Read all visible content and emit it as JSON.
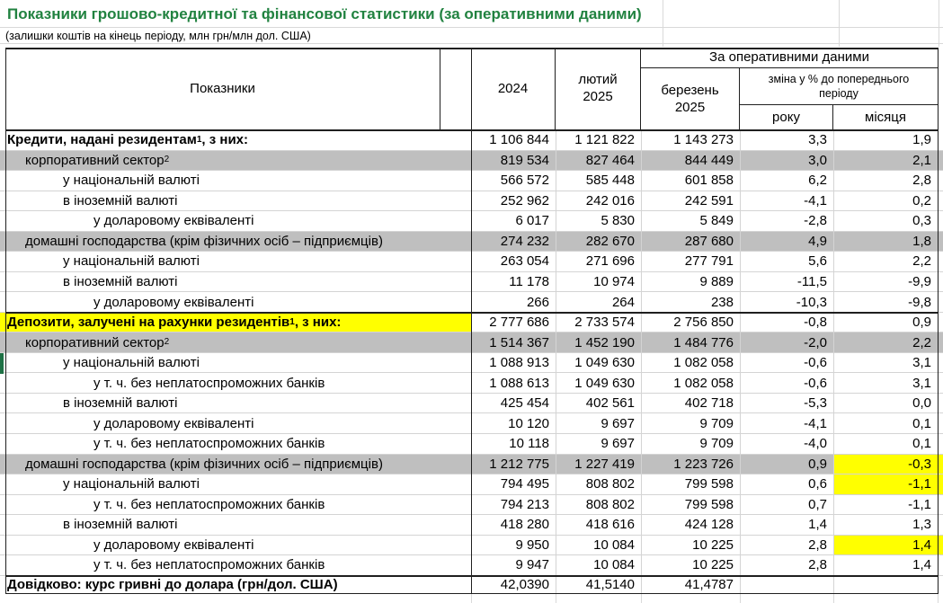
{
  "title": "Показники грошово-кредитної та фінансової статистики (за оперативними даними)",
  "subtitle": "(залишки коштів на кінець періоду, млн грн/млн дол. США)",
  "colors": {
    "title_green": "#218240",
    "selection_green": "#1e7145",
    "row_gray": "#bfbfbf",
    "highlight_yellow": "#ffff00"
  },
  "table": {
    "header": {
      "indicator": "Показники",
      "col_2024": "2024",
      "col_feb": "лютий\n2025",
      "operational": "За оперативними даними",
      "col_mar": "березень\n2025",
      "change_label": "зміна у % до попереднього періоду",
      "col_year": "року",
      "col_month": "місяця"
    },
    "rows": [
      {
        "label": "Кредити, надані резидентам",
        "sup": "1",
        "label_suffix": ", з них:",
        "indent": 0,
        "bold": true,
        "values": [
          "1 106 844",
          "1 121 822",
          "1 143 273",
          "3,3",
          "1,9"
        ]
      },
      {
        "label": "корпоративний сектор",
        "sup": "2",
        "indent": 1,
        "row_bg": "gray",
        "values": [
          "819 534",
          "827 464",
          "844 449",
          "3,0",
          "2,1"
        ]
      },
      {
        "label": "у національній валюті",
        "indent": 2,
        "values": [
          "566 572",
          "585 448",
          "601 858",
          "6,2",
          "2,8"
        ]
      },
      {
        "label": "в іноземній валюті",
        "indent": 2,
        "values": [
          "252 962",
          "242 016",
          "242 591",
          "-4,1",
          "0,2"
        ]
      },
      {
        "label": "у доларовому еквіваленті",
        "indent": 3,
        "values": [
          "6 017",
          "5 830",
          "5 849",
          "-2,8",
          "0,3"
        ]
      },
      {
        "label": "домашні господарства (крім фізичних осіб – підприємців)",
        "indent": 1,
        "row_bg": "gray",
        "values": [
          "274 232",
          "282 670",
          "287 680",
          "4,9",
          "1,8"
        ]
      },
      {
        "label": "у національній валюті",
        "indent": 2,
        "values": [
          "263 054",
          "271 696",
          "277 791",
          "5,6",
          "2,2"
        ]
      },
      {
        "label": "в іноземній валюті",
        "indent": 2,
        "values": [
          "11 178",
          "10 974",
          "9 889",
          "-11,5",
          "-9,9"
        ]
      },
      {
        "label": "у доларовому еквіваленті",
        "indent": 3,
        "values": [
          "266",
          "264",
          "238",
          "-10,3",
          "-9,8"
        ]
      },
      {
        "label": "Депозити, залучені на рахунки резидентів",
        "sup": "1",
        "label_suffix": ", з них:",
        "indent": 0,
        "bold": true,
        "label_bg": "yellow",
        "separator_top": true,
        "values": [
          "2 777 686",
          "2 733 574",
          "2 756 850",
          "-0,8",
          "0,9"
        ]
      },
      {
        "label": "корпоративний сектор",
        "sup": "2",
        "indent": 1,
        "row_bg": "gray",
        "values": [
          "1 514 367",
          "1 452 190",
          "1 484 776",
          "-2,0",
          "2,2"
        ]
      },
      {
        "label": "у національній валюті",
        "indent": 2,
        "selected": true,
        "values": [
          "1 088 913",
          "1 049 630",
          "1 082 058",
          "-0,6",
          "3,1"
        ]
      },
      {
        "label": "у т. ч. без неплатоспроможних банків",
        "indent": 3,
        "values": [
          "1 088 613",
          "1 049 630",
          "1 082 058",
          "-0,6",
          "3,1"
        ]
      },
      {
        "label": "в іноземній валюті",
        "indent": 2,
        "values": [
          "425 454",
          "402 561",
          "402 718",
          "-5,3",
          "0,0"
        ]
      },
      {
        "label": "у доларовому еквіваленті",
        "indent": 3,
        "values": [
          "10 120",
          "9 697",
          "9 709",
          "-4,1",
          "0,1"
        ]
      },
      {
        "label": "у т. ч. без неплатоспроможних банків",
        "indent": 3,
        "values": [
          "10 118",
          "9 697",
          "9 709",
          "-4,0",
          "0,1"
        ]
      },
      {
        "label": "домашні господарства (крім фізичних осіб – підприємців)",
        "indent": 1,
        "row_bg": "gray",
        "month_highlight": true,
        "values": [
          "1 212 775",
          "1 227 419",
          "1 223 726",
          "0,9",
          "-0,3"
        ]
      },
      {
        "label": "у національній валюті",
        "indent": 2,
        "month_highlight": true,
        "values": [
          "794 495",
          "808 802",
          "799 598",
          "0,6",
          "-1,1"
        ]
      },
      {
        "label": "у т. ч. без неплатоспроможних банків",
        "indent": 3,
        "values": [
          "794 213",
          "808 802",
          "799 598",
          "0,7",
          "-1,1"
        ]
      },
      {
        "label": "в іноземній валюті",
        "indent": 2,
        "values": [
          "418 280",
          "418 616",
          "424 128",
          "1,4",
          "1,3"
        ]
      },
      {
        "label": "у доларовому еквіваленті",
        "indent": 3,
        "month_highlight": true,
        "values": [
          "9 950",
          "10 084",
          "10 225",
          "2,8",
          "1,4"
        ]
      },
      {
        "label": "у т. ч. без неплатоспроможних банків",
        "indent": 3,
        "values": [
          "9 947",
          "10 084",
          "10 225",
          "2,8",
          "1,4"
        ]
      },
      {
        "label": "Довідково: курс гривні до долара (грн/дол. США)",
        "indent": 0,
        "bold": true,
        "separator_top": true,
        "last": true,
        "values": [
          "42,0390",
          "41,5140",
          "41,4787",
          "",
          ""
        ]
      }
    ]
  }
}
